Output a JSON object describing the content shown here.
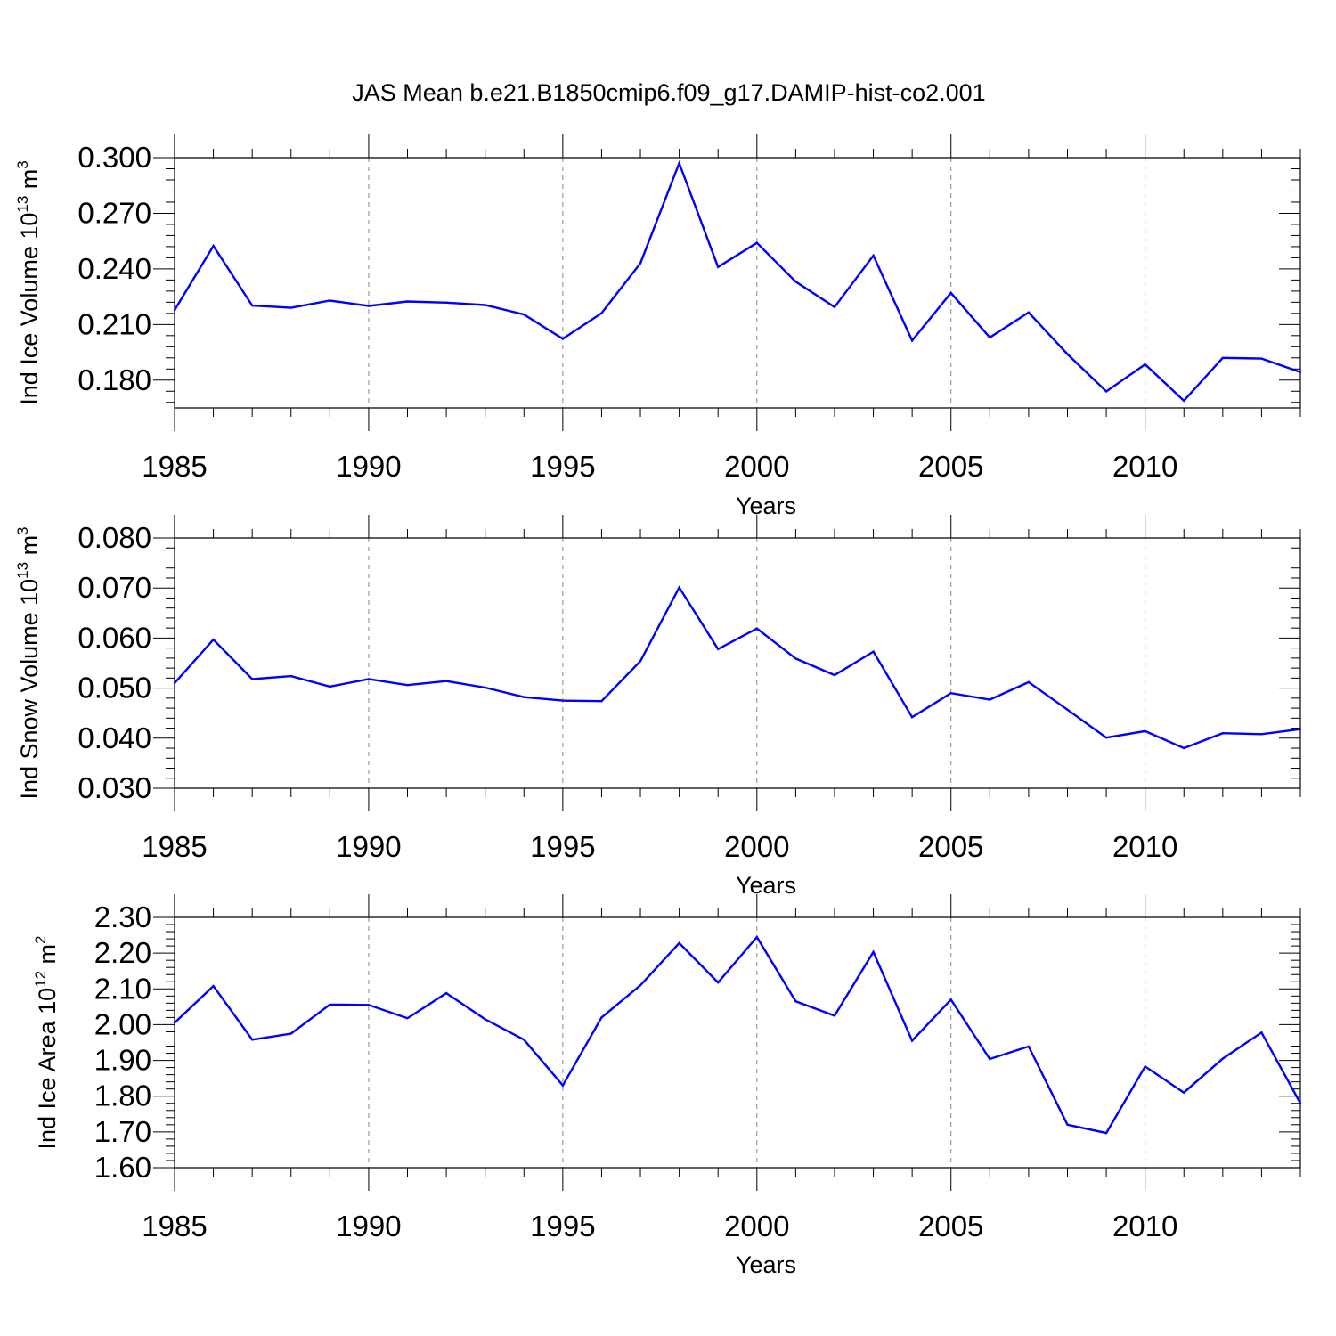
{
  "title": "JAS Mean b.e21.B1850cmip6.f09_g17.DAMIP-hist-co2.001",
  "colors": {
    "line": "#0000ff",
    "axis": "#000000",
    "grid": "#888888"
  },
  "chart_data": [
    {
      "type": "line",
      "xlabel": "Years",
      "ylabel": {
        "text": "Ind Ice Volume 10",
        "sup": "13",
        "unit": " m",
        "unit_sup": "3"
      },
      "xlim": [
        1985,
        2014
      ],
      "ylim": [
        0.165,
        0.3
      ],
      "x_ticks": [
        "1985",
        "1990",
        "1995",
        "2000",
        "2005",
        "2010"
      ],
      "y_ticks": [
        "0.300",
        "0.270",
        "0.240",
        "0.210",
        "0.180"
      ],
      "grid": "vertical dashed",
      "x": [
        1985,
        1986,
        1987,
        1988,
        1989,
        1990,
        1991,
        1992,
        1993,
        1994,
        1995,
        1996,
        1997,
        1998,
        1999,
        2000,
        2001,
        2002,
        2003,
        2004,
        2005,
        2006,
        2007,
        2008,
        2009,
        2010,
        2011,
        2012,
        2013,
        2014
      ],
      "values": [
        0.2177,
        0.2524,
        0.2202,
        0.219,
        0.2229,
        0.22,
        0.2224,
        0.2218,
        0.2205,
        0.2154,
        0.2023,
        0.2161,
        0.243,
        0.297,
        0.241,
        0.254,
        0.2331,
        0.2194,
        0.2472,
        0.2013,
        0.227,
        0.203,
        0.2165,
        0.194,
        0.1739,
        0.1885,
        0.1689,
        0.192,
        0.1916,
        0.1843
      ]
    },
    {
      "type": "line",
      "xlabel": "Years",
      "ylabel": {
        "text": "Ind Snow Volume 10",
        "sup": "13",
        "unit": " m",
        "unit_sup": "3"
      },
      "xlim": [
        1985,
        2014
      ],
      "ylim": [
        0.03,
        0.08
      ],
      "x_ticks": [
        "1985",
        "1990",
        "1995",
        "2000",
        "2005",
        "2010"
      ],
      "y_ticks": [
        "0.080",
        "0.070",
        "0.060",
        "0.050",
        "0.040",
        "0.030"
      ],
      "grid": "vertical dashed",
      "x": [
        1985,
        1986,
        1987,
        1988,
        1989,
        1990,
        1991,
        1992,
        1993,
        1994,
        1995,
        1996,
        1997,
        1998,
        1999,
        2000,
        2001,
        2002,
        2003,
        2004,
        2005,
        2006,
        2007,
        2008,
        2009,
        2010,
        2011,
        2012,
        2013,
        2014
      ],
      "values": [
        0.051,
        0.0597,
        0.0518,
        0.0524,
        0.0503,
        0.0518,
        0.0506,
        0.0514,
        0.0501,
        0.0482,
        0.0475,
        0.0474,
        0.0554,
        0.0701,
        0.0578,
        0.0619,
        0.0559,
        0.0526,
        0.0573,
        0.0442,
        0.049,
        0.0477,
        0.0512,
        0.0457,
        0.0401,
        0.0414,
        0.038,
        0.041,
        0.0408,
        0.0418
      ]
    },
    {
      "type": "line",
      "xlabel": "Years",
      "ylabel": {
        "text": "Ind Ice Area 10",
        "sup": "12",
        "unit": " m",
        "unit_sup": "2"
      },
      "xlim": [
        1985,
        2014
      ],
      "ylim": [
        1.6,
        2.3
      ],
      "x_ticks": [
        "1985",
        "1990",
        "1995",
        "2000",
        "2005",
        "2010"
      ],
      "y_ticks": [
        "2.30",
        "2.20",
        "2.10",
        "2.00",
        "1.90",
        "1.80",
        "1.70",
        "1.60"
      ],
      "grid": "vertical dashed",
      "x": [
        1985,
        1986,
        1987,
        1988,
        1989,
        1990,
        1991,
        1992,
        1993,
        1994,
        1995,
        1996,
        1997,
        1998,
        1999,
        2000,
        2001,
        2002,
        2003,
        2004,
        2005,
        2006,
        2007,
        2008,
        2009,
        2010,
        2011,
        2012,
        2013,
        2014
      ],
      "values": [
        2.005,
        2.108,
        1.958,
        1.975,
        2.056,
        2.055,
        2.018,
        2.088,
        2.015,
        1.958,
        1.83,
        2.02,
        2.11,
        2.228,
        2.118,
        2.245,
        2.065,
        2.025,
        2.203,
        1.955,
        2.07,
        1.904,
        1.939,
        1.72,
        1.697,
        1.883,
        1.81,
        1.905,
        1.978,
        1.78
      ]
    }
  ]
}
